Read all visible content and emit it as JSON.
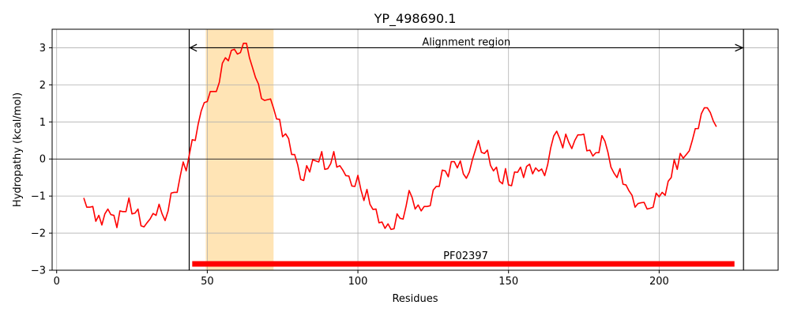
{
  "chart_data": {
    "type": "line",
    "title": "YP_498690.1",
    "xlabel": "Residues",
    "ylabel": "Hydropathy (kcal/mol)",
    "xlim": [
      -1.5,
      239.5
    ],
    "ylim": [
      -3,
      3.5
    ],
    "xticks": [
      0,
      50,
      100,
      150,
      200
    ],
    "yticks": [
      -3,
      -2,
      -1,
      0,
      1,
      2,
      3
    ],
    "grid": true,
    "series": [
      {
        "color": "#ff0000",
        "x": [
          9,
          10,
          11,
          12,
          13,
          14,
          15,
          16,
          17,
          18,
          19,
          20,
          21,
          22,
          23,
          24,
          25,
          26,
          27,
          28,
          29,
          30,
          31,
          32,
          33,
          34,
          35,
          36,
          37,
          38,
          39,
          40,
          41,
          42,
          43,
          44,
          45,
          46,
          47,
          48,
          49,
          50,
          51,
          52,
          53,
          54,
          55,
          56,
          57,
          58,
          59,
          60,
          61,
          62,
          63,
          64,
          65,
          66,
          67,
          68,
          69,
          70,
          71,
          72,
          73,
          74,
          75,
          76,
          77,
          78,
          79,
          80,
          81,
          82,
          83,
          84,
          85,
          86,
          87,
          88,
          89,
          90,
          91,
          92,
          93,
          94,
          95,
          96,
          97,
          98,
          99,
          100,
          101,
          102,
          103,
          104,
          105,
          106,
          107,
          108,
          109,
          110,
          111,
          112,
          113,
          114,
          115,
          116,
          117,
          118,
          119,
          120,
          121,
          122,
          123,
          124,
          125,
          126,
          127,
          128,
          129,
          130,
          131,
          132,
          133,
          134,
          135,
          136,
          137,
          138,
          139,
          140,
          141,
          142,
          143,
          144,
          145,
          146,
          147,
          148,
          149,
          150,
          151,
          152,
          153,
          154,
          155,
          156,
          157,
          158,
          159,
          160,
          161,
          162,
          163,
          164,
          165,
          166,
          167,
          168,
          169,
          170,
          171,
          172,
          173,
          174,
          175,
          176,
          177,
          178,
          179,
          180,
          181,
          182,
          183,
          184,
          185,
          186,
          187,
          188,
          189,
          190,
          191,
          192,
          193,
          194,
          195,
          196,
          197,
          198,
          199,
          200,
          201,
          202,
          203,
          204,
          205,
          206,
          207,
          208,
          209,
          210,
          211,
          212,
          213,
          214,
          215,
          216,
          217,
          218,
          219
        ],
        "y": [
          -1.05,
          -1.3,
          -1.3,
          -1.28,
          -1.68,
          -1.52,
          -1.78,
          -1.48,
          -1.35,
          -1.5,
          -1.52,
          -1.85,
          -1.4,
          -1.42,
          -1.42,
          -1.05,
          -1.48,
          -1.46,
          -1.35,
          -1.8,
          -1.83,
          -1.72,
          -1.62,
          -1.47,
          -1.52,
          -1.22,
          -1.48,
          -1.66,
          -1.4,
          -0.92,
          -0.9,
          -0.9,
          -0.47,
          -0.08,
          -0.32,
          0.1,
          0.52,
          0.5,
          0.95,
          1.3,
          1.52,
          1.55,
          1.82,
          1.82,
          1.82,
          2.07,
          2.58,
          2.73,
          2.65,
          2.93,
          2.96,
          2.83,
          2.87,
          3.12,
          3.12,
          2.73,
          2.47,
          2.2,
          2.02,
          1.63,
          1.58,
          1.6,
          1.62,
          1.37,
          1.08,
          1.07,
          0.6,
          0.68,
          0.55,
          0.12,
          0.12,
          -0.15,
          -0.55,
          -0.58,
          -0.18,
          -0.35,
          -0.02,
          -0.05,
          -0.08,
          0.2,
          -0.28,
          -0.26,
          -0.12,
          0.2,
          -0.22,
          -0.18,
          -0.3,
          -0.45,
          -0.46,
          -0.73,
          -0.74,
          -0.44,
          -0.83,
          -1.12,
          -0.82,
          -1.22,
          -1.36,
          -1.35,
          -1.72,
          -1.7,
          -1.87,
          -1.75,
          -1.9,
          -1.88,
          -1.48,
          -1.6,
          -1.62,
          -1.27,
          -0.85,
          -1.04,
          -1.35,
          -1.24,
          -1.4,
          -1.28,
          -1.28,
          -1.26,
          -0.84,
          -0.74,
          -0.74,
          -0.3,
          -0.32,
          -0.48,
          -0.07,
          -0.07,
          -0.24,
          -0.05,
          -0.4,
          -0.52,
          -0.35,
          -0.02,
          0.24,
          0.5,
          0.18,
          0.15,
          0.24,
          -0.17,
          -0.32,
          -0.22,
          -0.6,
          -0.67,
          -0.26,
          -0.7,
          -0.72,
          -0.35,
          -0.36,
          -0.22,
          -0.5,
          -0.2,
          -0.14,
          -0.4,
          -0.24,
          -0.33,
          -0.27,
          -0.45,
          -0.15,
          0.3,
          0.62,
          0.75,
          0.55,
          0.3,
          0.67,
          0.45,
          0.28,
          0.5,
          0.65,
          0.65,
          0.67,
          0.22,
          0.24,
          0.08,
          0.17,
          0.17,
          0.63,
          0.48,
          0.18,
          -0.22,
          -0.38,
          -0.5,
          -0.26,
          -0.68,
          -0.7,
          -0.86,
          -0.98,
          -1.3,
          -1.2,
          -1.18,
          -1.17,
          -1.35,
          -1.33,
          -1.3,
          -0.92,
          -1.02,
          -0.9,
          -0.98,
          -0.6,
          -0.5,
          -0.02,
          -0.28,
          0.15,
          0.02,
          0.12,
          0.22,
          0.5,
          0.82,
          0.82,
          1.22,
          1.38,
          1.38,
          1.25,
          1.02,
          0.87
        ]
      }
    ],
    "shaded_region": {
      "x0": 49.5,
      "x1": 72,
      "color": "#ffe4b5"
    },
    "vlines": [
      44,
      228
    ],
    "hline_y": 0,
    "annotations": {
      "alignment": {
        "label": "Alignment region",
        "x0": 44,
        "x1": 228,
        "y": 3
      },
      "domain": {
        "label": "PF02397",
        "x0": 45,
        "x1": 225,
        "y": -2.83,
        "color": "#ff0000"
      }
    }
  }
}
